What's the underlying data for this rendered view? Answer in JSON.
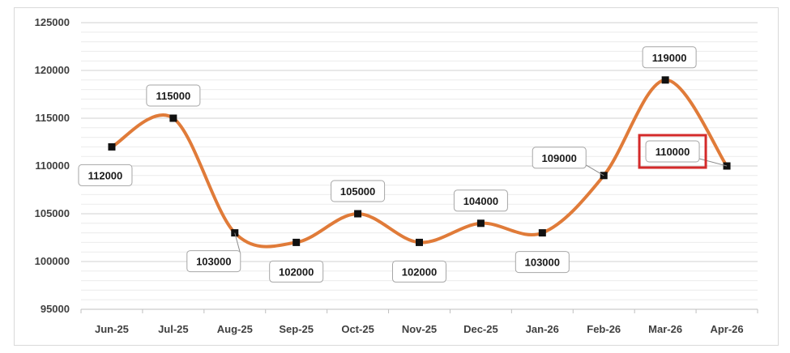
{
  "chart_data": {
    "type": "line",
    "smooth": true,
    "title": "",
    "xlabel": "",
    "ylabel": "",
    "categories": [
      "Jun-25",
      "Jul-25",
      "Aug-25",
      "Sep-25",
      "Oct-25",
      "Nov-25",
      "Dec-25",
      "Jan-26",
      "Feb-26",
      "Mar-26",
      "Apr-26"
    ],
    "series": [
      {
        "values": [
          112000,
          115000,
          103000,
          102000,
          105000,
          102000,
          104000,
          103000,
          109000,
          119000,
          110000
        ]
      }
    ],
    "data_labels": [
      "112000",
      "115000",
      "103000",
      "102000",
      "105000",
      "102000",
      "104000",
      "103000",
      "109000",
      "119000",
      "110000"
    ],
    "ylim": [
      95000,
      125000
    ],
    "yticks": [
      "95000",
      "100000",
      "105000",
      "110000",
      "115000",
      "120000",
      "125000"
    ],
    "grid": true,
    "legend": "none",
    "line_color": "#e07b39",
    "marker_color": "#111111",
    "highlight": {
      "index": 10,
      "color": "#d42a2a"
    }
  }
}
